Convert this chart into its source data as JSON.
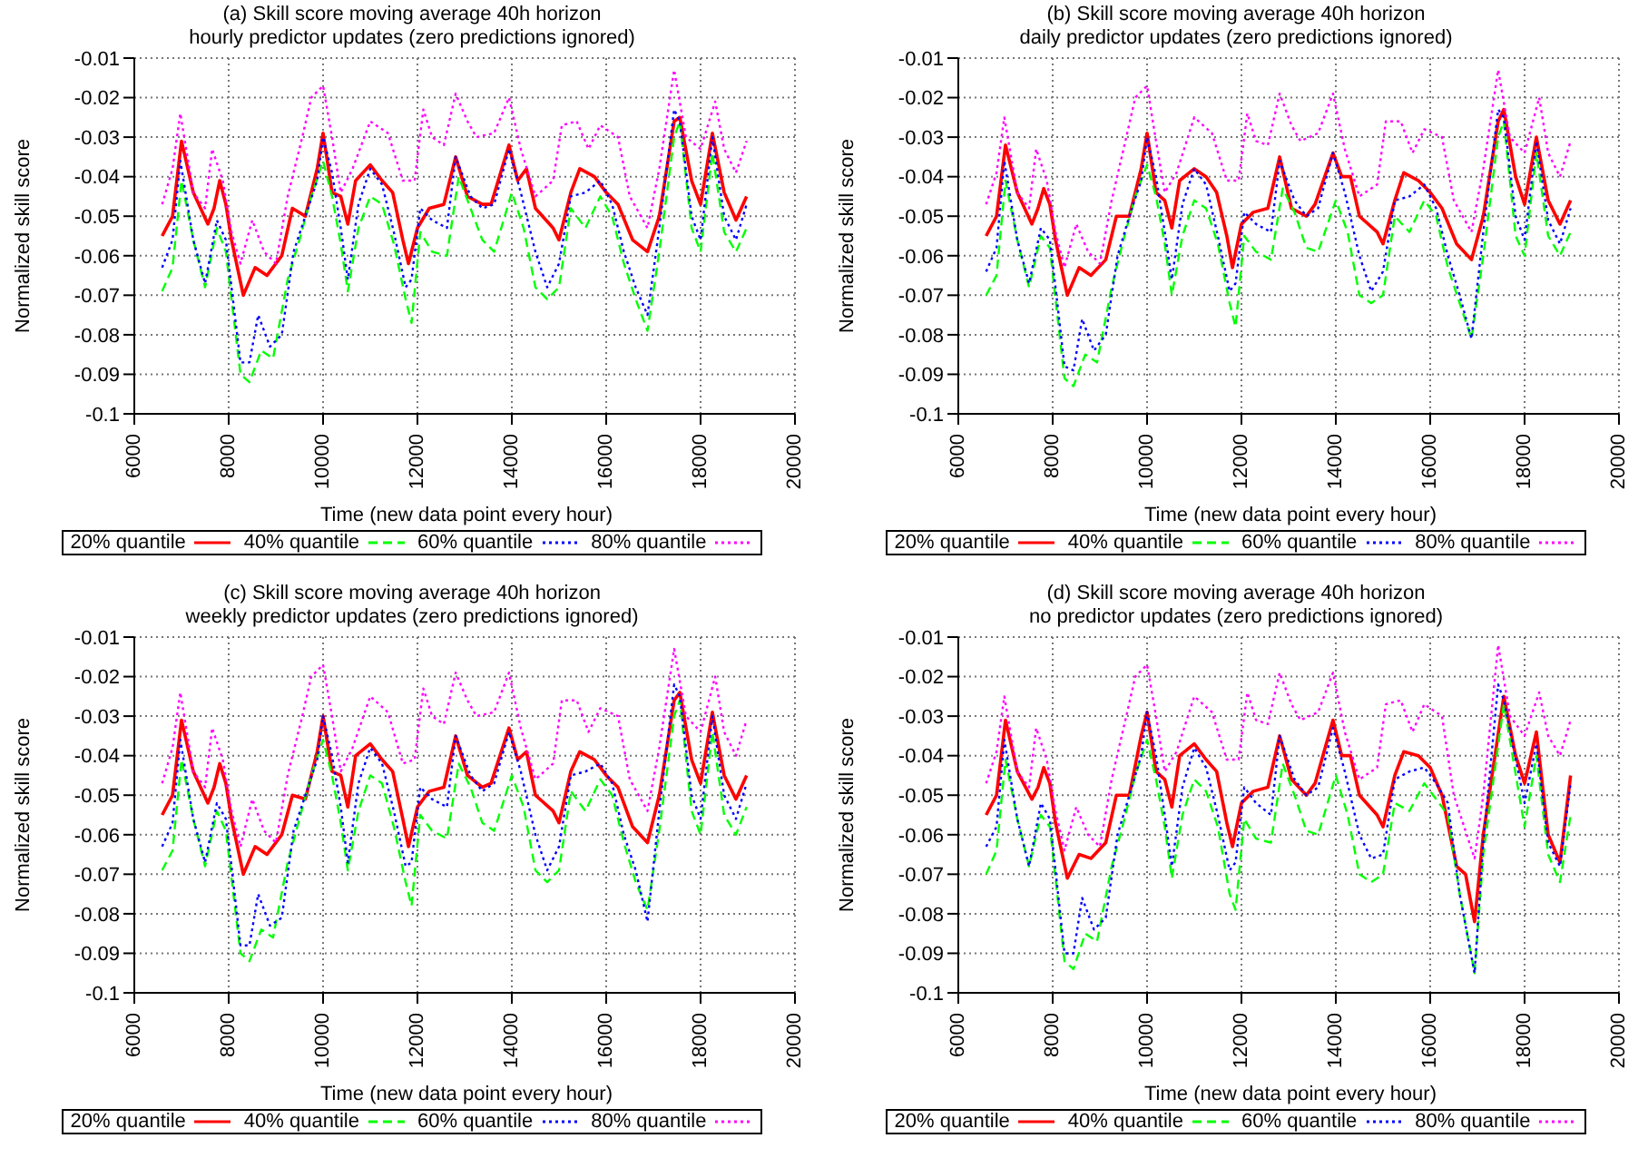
{
  "chart_data": [
    {
      "type": "line",
      "title": "(a) Skill score moving average 40h horizon",
      "subtitle": "hourly predictor updates (zero predictions ignored)",
      "xlabel": "Time (new data point every hour)",
      "ylabel": "Normalized skill score",
      "xlim": [
        6000,
        20000
      ],
      "xticks": [
        6000,
        8000,
        10000,
        12000,
        14000,
        16000,
        18000,
        20000
      ],
      "ylim": [
        -0.1,
        -0.01
      ],
      "yticks": [
        -0.1,
        -0.09,
        -0.08,
        -0.07,
        -0.06,
        -0.05,
        -0.04,
        -0.03,
        -0.02,
        -0.01
      ],
      "grid": true,
      "legend": "bottom",
      "series": [
        {
          "name": "20% quantile",
          "color": "#ff0000",
          "line_style": "solid",
          "x": [
            6590,
            6810,
            7000,
            7250,
            7560,
            7690,
            7810,
            7940,
            8060,
            8310,
            8560,
            8810,
            9125,
            9350,
            9625,
            9875,
            10000,
            10190,
            10375,
            10525,
            10690,
            11000,
            11250,
            11475,
            11690,
            11810,
            12000,
            12250,
            12560,
            12810,
            13060,
            13375,
            13560,
            13940,
            14125,
            14310,
            14500,
            14875,
            15000,
            15250,
            15440,
            15750,
            16000,
            16250,
            16560,
            16875,
            17125,
            17440,
            17560,
            17810,
            18000,
            18250,
            18500,
            18750,
            18975
          ],
          "values": [
            -0.055,
            -0.05,
            -0.031,
            -0.044,
            -0.052,
            -0.048,
            -0.041,
            -0.047,
            -0.056,
            -0.07,
            -0.063,
            -0.065,
            -0.06,
            -0.048,
            -0.05,
            -0.038,
            -0.029,
            -0.044,
            -0.045,
            -0.052,
            -0.041,
            -0.037,
            -0.041,
            -0.044,
            -0.056,
            -0.062,
            -0.053,
            -0.048,
            -0.047,
            -0.035,
            -0.045,
            -0.047,
            -0.047,
            -0.032,
            -0.041,
            -0.038,
            -0.048,
            -0.053,
            -0.056,
            -0.044,
            -0.038,
            -0.04,
            -0.044,
            -0.047,
            -0.056,
            -0.059,
            -0.05,
            -0.026,
            -0.025,
            -0.041,
            -0.047,
            -0.029,
            -0.044,
            -0.051,
            -0.045
          ]
        },
        {
          "name": "40% quantile",
          "color": "#00ff00",
          "line_style": "dashed",
          "x": [
            6590,
            6810,
            7000,
            7250,
            7500,
            7750,
            7940,
            8060,
            8250,
            8440,
            8690,
            8940,
            9250,
            9500,
            9750,
            10000,
            10190,
            10375,
            10525,
            10750,
            11000,
            11250,
            11500,
            11750,
            11875,
            12060,
            12310,
            12625,
            12875,
            13125,
            13375,
            13625,
            14000,
            14250,
            14500,
            14750,
            15000,
            15250,
            15560,
            15875,
            16125,
            16375,
            16625,
            16875,
            17125,
            17440,
            17560,
            17810,
            18000,
            18250,
            18500,
            18750,
            18975
          ],
          "values": [
            -0.069,
            -0.063,
            -0.041,
            -0.056,
            -0.068,
            -0.053,
            -0.059,
            -0.071,
            -0.09,
            -0.092,
            -0.084,
            -0.086,
            -0.066,
            -0.056,
            -0.045,
            -0.036,
            -0.045,
            -0.057,
            -0.069,
            -0.053,
            -0.045,
            -0.047,
            -0.057,
            -0.071,
            -0.077,
            -0.054,
            -0.059,
            -0.06,
            -0.04,
            -0.048,
            -0.056,
            -0.059,
            -0.044,
            -0.053,
            -0.068,
            -0.071,
            -0.068,
            -0.048,
            -0.053,
            -0.045,
            -0.05,
            -0.062,
            -0.071,
            -0.079,
            -0.059,
            -0.03,
            -0.026,
            -0.053,
            -0.059,
            -0.034,
            -0.054,
            -0.059,
            -0.053
          ]
        },
        {
          "name": "60% quantile",
          "color": "#0000ff",
          "line_style": "dotted",
          "x": [
            6590,
            6810,
            6975,
            7250,
            7500,
            7750,
            7940,
            8060,
            8250,
            8440,
            8625,
            8875,
            9125,
            9375,
            9625,
            9875,
            10000,
            10190,
            10375,
            10525,
            10750,
            11000,
            11250,
            11500,
            11750,
            11875,
            12060,
            12310,
            12625,
            12810,
            13125,
            13375,
            13625,
            13940,
            14190,
            14500,
            14750,
            15000,
            15250,
            15560,
            15875,
            16125,
            16375,
            16625,
            16875,
            17125,
            17440,
            17560,
            17810,
            18000,
            18250,
            18500,
            18750,
            18975
          ],
          "values": [
            -0.063,
            -0.056,
            -0.036,
            -0.056,
            -0.067,
            -0.051,
            -0.056,
            -0.068,
            -0.087,
            -0.087,
            -0.075,
            -0.083,
            -0.08,
            -0.059,
            -0.05,
            -0.041,
            -0.03,
            -0.039,
            -0.053,
            -0.066,
            -0.047,
            -0.038,
            -0.042,
            -0.054,
            -0.068,
            -0.066,
            -0.048,
            -0.051,
            -0.053,
            -0.035,
            -0.045,
            -0.048,
            -0.047,
            -0.033,
            -0.044,
            -0.059,
            -0.068,
            -0.062,
            -0.045,
            -0.044,
            -0.041,
            -0.047,
            -0.059,
            -0.068,
            -0.075,
            -0.053,
            -0.023,
            -0.026,
            -0.05,
            -0.056,
            -0.03,
            -0.05,
            -0.056,
            -0.047
          ]
        },
        {
          "name": "80% quantile",
          "color": "#ff00ff",
          "line_style": "dotted",
          "x": [
            6590,
            6810,
            6975,
            7250,
            7500,
            7650,
            7875,
            8060,
            8250,
            8500,
            8750,
            9000,
            9250,
            9560,
            9750,
            10000,
            10190,
            10375,
            10625,
            11000,
            11375,
            11690,
            11940,
            12125,
            12310,
            12560,
            12810,
            13060,
            13250,
            13625,
            13940,
            14190,
            14500,
            14875,
            15060,
            15375,
            15625,
            15875,
            16250,
            16500,
            16875,
            17125,
            17440,
            17690,
            18000,
            18310,
            18500,
            18750,
            18975
          ],
          "values": [
            -0.047,
            -0.038,
            -0.024,
            -0.044,
            -0.048,
            -0.033,
            -0.041,
            -0.054,
            -0.062,
            -0.051,
            -0.059,
            -0.062,
            -0.045,
            -0.03,
            -0.02,
            -0.017,
            -0.03,
            -0.044,
            -0.038,
            -0.026,
            -0.029,
            -0.041,
            -0.041,
            -0.023,
            -0.03,
            -0.032,
            -0.019,
            -0.026,
            -0.03,
            -0.029,
            -0.02,
            -0.033,
            -0.045,
            -0.041,
            -0.027,
            -0.026,
            -0.033,
            -0.027,
            -0.03,
            -0.045,
            -0.053,
            -0.038,
            -0.013,
            -0.03,
            -0.033,
            -0.021,
            -0.033,
            -0.039,
            -0.031
          ]
        }
      ]
    },
    {
      "type": "line",
      "title": "(b) Skill score moving average 40h horizon",
      "subtitle": "daily predictor updates (zero predictions ignored)",
      "xlabel": "Time (new data point every hour)",
      "ylabel": "Normalized skill score",
      "xlim": [
        6000,
        20000
      ],
      "xticks": [
        6000,
        8000,
        10000,
        12000,
        14000,
        16000,
        18000,
        20000
      ],
      "ylim": [
        -0.1,
        -0.01
      ],
      "yticks": [
        -0.1,
        -0.09,
        -0.08,
        -0.07,
        -0.06,
        -0.05,
        -0.04,
        -0.03,
        -0.02,
        -0.01
      ],
      "grid": true,
      "legend": "bottom",
      "series": [
        {
          "name": "20% quantile",
          "color": "#ff0000",
          "line_style": "solid",
          "x": [
            6590,
            6810,
            7000,
            7250,
            7560,
            7690,
            7810,
            7940,
            8060,
            8310,
            8560,
            8810,
            9125,
            9350,
            9625,
            9875,
            10000,
            10190,
            10375,
            10525,
            10690,
            11000,
            11250,
            11475,
            11690,
            11810,
            12000,
            12250,
            12560,
            12810,
            13060,
            13375,
            13560,
            13940,
            14125,
            14310,
            14500,
            14875,
            15000,
            15250,
            15440,
            15750,
            16000,
            16250,
            16560,
            16875,
            17125,
            17440,
            17560,
            17810,
            18000,
            18250,
            18500,
            18750,
            18975
          ],
          "values": [
            -0.055,
            -0.05,
            -0.032,
            -0.044,
            -0.052,
            -0.048,
            -0.043,
            -0.047,
            -0.056,
            -0.07,
            -0.063,
            -0.065,
            -0.061,
            -0.05,
            -0.05,
            -0.038,
            -0.029,
            -0.044,
            -0.046,
            -0.053,
            -0.041,
            -0.038,
            -0.04,
            -0.044,
            -0.055,
            -0.063,
            -0.052,
            -0.049,
            -0.048,
            -0.035,
            -0.048,
            -0.05,
            -0.047,
            -0.034,
            -0.04,
            -0.04,
            -0.05,
            -0.054,
            -0.057,
            -0.046,
            -0.039,
            -0.041,
            -0.044,
            -0.048,
            -0.057,
            -0.061,
            -0.05,
            -0.026,
            -0.023,
            -0.04,
            -0.047,
            -0.03,
            -0.046,
            -0.052,
            -0.046
          ]
        },
        {
          "name": "40% quantile",
          "color": "#00ff00",
          "line_style": "dashed",
          "x": [
            6590,
            6810,
            7000,
            7250,
            7500,
            7750,
            7940,
            8060,
            8250,
            8440,
            8690,
            8940,
            9250,
            9500,
            9750,
            10000,
            10190,
            10375,
            10525,
            10750,
            11000,
            11250,
            11500,
            11750,
            11875,
            12060,
            12310,
            12625,
            12875,
            13125,
            13375,
            13625,
            14000,
            14250,
            14500,
            14750,
            15000,
            15250,
            15560,
            15875,
            16125,
            16375,
            16625,
            16875,
            17125,
            17440,
            17560,
            17810,
            18000,
            18250,
            18500,
            18750,
            18975
          ],
          "values": [
            -0.07,
            -0.065,
            -0.041,
            -0.056,
            -0.068,
            -0.055,
            -0.058,
            -0.071,
            -0.091,
            -0.093,
            -0.085,
            -0.087,
            -0.068,
            -0.056,
            -0.045,
            -0.037,
            -0.045,
            -0.057,
            -0.07,
            -0.055,
            -0.046,
            -0.048,
            -0.057,
            -0.072,
            -0.078,
            -0.055,
            -0.059,
            -0.061,
            -0.043,
            -0.049,
            -0.058,
            -0.059,
            -0.046,
            -0.054,
            -0.07,
            -0.072,
            -0.07,
            -0.05,
            -0.054,
            -0.046,
            -0.05,
            -0.063,
            -0.072,
            -0.081,
            -0.06,
            -0.03,
            -0.026,
            -0.055,
            -0.06,
            -0.034,
            -0.055,
            -0.06,
            -0.054
          ]
        },
        {
          "name": "60% quantile",
          "color": "#0000ff",
          "line_style": "dotted",
          "x": [
            6590,
            6810,
            6975,
            7250,
            7500,
            7750,
            7940,
            8060,
            8250,
            8440,
            8625,
            8875,
            9125,
            9375,
            9625,
            9875,
            10000,
            10190,
            10375,
            10525,
            10750,
            11000,
            11250,
            11500,
            11750,
            11875,
            12060,
            12310,
            12625,
            12810,
            13125,
            13375,
            13625,
            13940,
            14190,
            14500,
            14750,
            15000,
            15250,
            15560,
            15875,
            16125,
            16375,
            16625,
            16875,
            17125,
            17440,
            17560,
            17810,
            18000,
            18250,
            18500,
            18750,
            18975
          ],
          "values": [
            -0.064,
            -0.058,
            -0.036,
            -0.056,
            -0.067,
            -0.053,
            -0.056,
            -0.068,
            -0.088,
            -0.089,
            -0.076,
            -0.084,
            -0.08,
            -0.06,
            -0.05,
            -0.041,
            -0.03,
            -0.04,
            -0.054,
            -0.066,
            -0.047,
            -0.038,
            -0.042,
            -0.055,
            -0.069,
            -0.067,
            -0.049,
            -0.052,
            -0.054,
            -0.036,
            -0.046,
            -0.05,
            -0.048,
            -0.034,
            -0.044,
            -0.06,
            -0.069,
            -0.064,
            -0.046,
            -0.045,
            -0.042,
            -0.048,
            -0.06,
            -0.07,
            -0.081,
            -0.054,
            -0.023,
            -0.025,
            -0.05,
            -0.056,
            -0.031,
            -0.051,
            -0.057,
            -0.048
          ]
        },
        {
          "name": "80% quantile",
          "color": "#ff00ff",
          "line_style": "dotted",
          "x": [
            6590,
            6810,
            6975,
            7250,
            7500,
            7650,
            7875,
            8060,
            8250,
            8500,
            8750,
            9000,
            9250,
            9560,
            9750,
            10000,
            10190,
            10375,
            10625,
            11000,
            11375,
            11690,
            11940,
            12125,
            12310,
            12560,
            12810,
            13060,
            13250,
            13625,
            13940,
            14190,
            14500,
            14875,
            15060,
            15375,
            15625,
            15875,
            16250,
            16500,
            16875,
            17125,
            17440,
            17690,
            18000,
            18310,
            18500,
            18750,
            18975
          ],
          "values": [
            -0.047,
            -0.039,
            -0.025,
            -0.044,
            -0.048,
            -0.033,
            -0.041,
            -0.054,
            -0.063,
            -0.052,
            -0.059,
            -0.062,
            -0.046,
            -0.03,
            -0.02,
            -0.017,
            -0.031,
            -0.044,
            -0.039,
            -0.025,
            -0.029,
            -0.041,
            -0.041,
            -0.024,
            -0.031,
            -0.032,
            -0.019,
            -0.027,
            -0.031,
            -0.029,
            -0.019,
            -0.033,
            -0.045,
            -0.042,
            -0.026,
            -0.026,
            -0.034,
            -0.028,
            -0.03,
            -0.046,
            -0.054,
            -0.038,
            -0.013,
            -0.03,
            -0.034,
            -0.02,
            -0.034,
            -0.04,
            -0.031
          ]
        }
      ]
    },
    {
      "type": "line",
      "title": "(c) Skill score moving average 40h horizon",
      "subtitle": "weekly predictor updates (zero predictions ignored)",
      "xlabel": "Time (new data point every hour)",
      "ylabel": "Normalized skill score",
      "xlim": [
        6000,
        20000
      ],
      "xticks": [
        6000,
        8000,
        10000,
        12000,
        14000,
        16000,
        18000,
        20000
      ],
      "ylim": [
        -0.1,
        -0.01
      ],
      "yticks": [
        -0.1,
        -0.09,
        -0.08,
        -0.07,
        -0.06,
        -0.05,
        -0.04,
        -0.03,
        -0.02,
        -0.01
      ],
      "grid": true,
      "legend": "bottom",
      "series": [
        {
          "name": "20% quantile",
          "color": "#ff0000",
          "line_style": "solid",
          "x": [
            6590,
            6810,
            7000,
            7250,
            7560,
            7690,
            7810,
            7940,
            8060,
            8310,
            8560,
            8810,
            9125,
            9350,
            9625,
            9875,
            10000,
            10190,
            10375,
            10525,
            10690,
            11000,
            11250,
            11475,
            11690,
            11810,
            12000,
            12250,
            12560,
            12810,
            13060,
            13375,
            13560,
            13940,
            14125,
            14310,
            14500,
            14875,
            15000,
            15250,
            15440,
            15750,
            16000,
            16250,
            16560,
            16875,
            17125,
            17440,
            17560,
            17810,
            18000,
            18250,
            18500,
            18750,
            18975
          ],
          "values": [
            -0.055,
            -0.05,
            -0.031,
            -0.044,
            -0.052,
            -0.048,
            -0.042,
            -0.047,
            -0.056,
            -0.07,
            -0.063,
            -0.065,
            -0.06,
            -0.05,
            -0.051,
            -0.039,
            -0.03,
            -0.044,
            -0.045,
            -0.053,
            -0.04,
            -0.037,
            -0.041,
            -0.044,
            -0.056,
            -0.063,
            -0.053,
            -0.049,
            -0.048,
            -0.035,
            -0.045,
            -0.048,
            -0.047,
            -0.033,
            -0.041,
            -0.039,
            -0.05,
            -0.054,
            -0.057,
            -0.044,
            -0.039,
            -0.041,
            -0.045,
            -0.048,
            -0.058,
            -0.062,
            -0.05,
            -0.026,
            -0.024,
            -0.041,
            -0.047,
            -0.029,
            -0.045,
            -0.051,
            -0.045
          ]
        },
        {
          "name": "40% quantile",
          "color": "#00ff00",
          "line_style": "dashed",
          "x": [
            6590,
            6810,
            7000,
            7250,
            7500,
            7750,
            7940,
            8060,
            8250,
            8440,
            8690,
            8940,
            9250,
            9500,
            9750,
            10000,
            10190,
            10375,
            10525,
            10750,
            11000,
            11250,
            11500,
            11750,
            11875,
            12060,
            12310,
            12625,
            12875,
            13125,
            13375,
            13625,
            14000,
            14250,
            14500,
            14750,
            15000,
            15250,
            15560,
            15875,
            16125,
            16375,
            16625,
            16875,
            17125,
            17440,
            17560,
            17810,
            18000,
            18250,
            18500,
            18750,
            18975
          ],
          "values": [
            -0.069,
            -0.064,
            -0.041,
            -0.056,
            -0.068,
            -0.054,
            -0.059,
            -0.071,
            -0.09,
            -0.092,
            -0.084,
            -0.086,
            -0.067,
            -0.056,
            -0.045,
            -0.036,
            -0.045,
            -0.057,
            -0.069,
            -0.054,
            -0.045,
            -0.047,
            -0.058,
            -0.072,
            -0.078,
            -0.055,
            -0.059,
            -0.061,
            -0.042,
            -0.048,
            -0.057,
            -0.059,
            -0.045,
            -0.053,
            -0.069,
            -0.072,
            -0.069,
            -0.049,
            -0.054,
            -0.046,
            -0.05,
            -0.062,
            -0.072,
            -0.079,
            -0.059,
            -0.03,
            -0.026,
            -0.054,
            -0.06,
            -0.034,
            -0.055,
            -0.06,
            -0.053
          ]
        },
        {
          "name": "60% quantile",
          "color": "#0000ff",
          "line_style": "dotted",
          "x": [
            6590,
            6810,
            6975,
            7250,
            7500,
            7750,
            7940,
            8060,
            8250,
            8440,
            8625,
            8875,
            9125,
            9375,
            9625,
            9875,
            10000,
            10190,
            10375,
            10525,
            10750,
            11000,
            11250,
            11500,
            11750,
            11875,
            12060,
            12310,
            12625,
            12810,
            13125,
            13375,
            13625,
            13940,
            14190,
            14500,
            14750,
            15000,
            15250,
            15560,
            15875,
            16125,
            16375,
            16625,
            16875,
            17125,
            17440,
            17560,
            17810,
            18000,
            18250,
            18500,
            18750,
            18975
          ],
          "values": [
            -0.063,
            -0.057,
            -0.036,
            -0.056,
            -0.067,
            -0.052,
            -0.056,
            -0.068,
            -0.088,
            -0.088,
            -0.075,
            -0.083,
            -0.081,
            -0.059,
            -0.05,
            -0.041,
            -0.03,
            -0.04,
            -0.053,
            -0.067,
            -0.047,
            -0.038,
            -0.042,
            -0.054,
            -0.068,
            -0.067,
            -0.048,
            -0.051,
            -0.053,
            -0.035,
            -0.045,
            -0.049,
            -0.047,
            -0.034,
            -0.044,
            -0.06,
            -0.069,
            -0.063,
            -0.045,
            -0.044,
            -0.042,
            -0.047,
            -0.06,
            -0.069,
            -0.082,
            -0.054,
            -0.022,
            -0.025,
            -0.05,
            -0.056,
            -0.03,
            -0.05,
            -0.056,
            -0.047
          ]
        },
        {
          "name": "80% quantile",
          "color": "#ff00ff",
          "line_style": "dotted",
          "x": [
            6590,
            6810,
            6975,
            7250,
            7500,
            7650,
            7875,
            8060,
            8250,
            8500,
            8750,
            9000,
            9250,
            9560,
            9750,
            10000,
            10190,
            10375,
            10625,
            11000,
            11375,
            11690,
            11940,
            12125,
            12310,
            12560,
            12810,
            13060,
            13250,
            13625,
            13940,
            14190,
            14500,
            14875,
            15060,
            15375,
            15625,
            15875,
            16250,
            16500,
            16875,
            17125,
            17440,
            17690,
            18000,
            18310,
            18500,
            18750,
            18975
          ],
          "values": [
            -0.047,
            -0.038,
            -0.024,
            -0.044,
            -0.048,
            -0.033,
            -0.041,
            -0.054,
            -0.063,
            -0.051,
            -0.059,
            -0.062,
            -0.045,
            -0.03,
            -0.02,
            -0.017,
            -0.03,
            -0.044,
            -0.038,
            -0.025,
            -0.029,
            -0.042,
            -0.041,
            -0.023,
            -0.03,
            -0.032,
            -0.019,
            -0.026,
            -0.03,
            -0.029,
            -0.019,
            -0.033,
            -0.046,
            -0.042,
            -0.026,
            -0.026,
            -0.034,
            -0.028,
            -0.03,
            -0.046,
            -0.054,
            -0.038,
            -0.013,
            -0.03,
            -0.034,
            -0.02,
            -0.034,
            -0.04,
            -0.031
          ]
        }
      ]
    },
    {
      "type": "line",
      "title": "(d) Skill score moving average 40h horizon",
      "subtitle": "no predictor updates (zero predictions ignored)",
      "xlabel": "Time (new data point every hour)",
      "ylabel": "Normalized skill score",
      "xlim": [
        6000,
        20000
      ],
      "xticks": [
        6000,
        8000,
        10000,
        12000,
        14000,
        16000,
        18000,
        20000
      ],
      "ylim": [
        -0.1,
        -0.01
      ],
      "yticks": [
        -0.1,
        -0.09,
        -0.08,
        -0.07,
        -0.06,
        -0.05,
        -0.04,
        -0.03,
        -0.02,
        -0.01
      ],
      "grid": true,
      "legend": "bottom",
      "series": [
        {
          "name": "20% quantile",
          "color": "#ff0000",
          "line_style": "solid",
          "x": [
            6590,
            6810,
            7000,
            7250,
            7560,
            7690,
            7810,
            7940,
            8060,
            8310,
            8560,
            8810,
            9125,
            9350,
            9625,
            9875,
            10000,
            10190,
            10375,
            10525,
            10690,
            11000,
            11250,
            11475,
            11690,
            11810,
            12000,
            12250,
            12560,
            12810,
            13060,
            13375,
            13560,
            13940,
            14125,
            14310,
            14500,
            14875,
            15000,
            15250,
            15440,
            15750,
            16000,
            16250,
            16560,
            16750,
            16940,
            17125,
            17310,
            17560,
            17810,
            18000,
            18250,
            18500,
            18750,
            18975
          ],
          "values": [
            -0.055,
            -0.05,
            -0.031,
            -0.044,
            -0.051,
            -0.048,
            -0.043,
            -0.047,
            -0.057,
            -0.071,
            -0.065,
            -0.066,
            -0.062,
            -0.05,
            -0.05,
            -0.035,
            -0.029,
            -0.044,
            -0.046,
            -0.053,
            -0.04,
            -0.037,
            -0.041,
            -0.044,
            -0.057,
            -0.063,
            -0.052,
            -0.049,
            -0.048,
            -0.035,
            -0.046,
            -0.05,
            -0.047,
            -0.031,
            -0.04,
            -0.04,
            -0.05,
            -0.055,
            -0.058,
            -0.045,
            -0.039,
            -0.04,
            -0.043,
            -0.05,
            -0.068,
            -0.07,
            -0.082,
            -0.06,
            -0.045,
            -0.025,
            -0.04,
            -0.047,
            -0.034,
            -0.06,
            -0.067,
            -0.045
          ]
        },
        {
          "name": "40% quantile",
          "color": "#00ff00",
          "line_style": "dashed",
          "x": [
            6590,
            6810,
            7000,
            7250,
            7500,
            7750,
            7940,
            8060,
            8250,
            8440,
            8690,
            8940,
            9250,
            9500,
            9750,
            10000,
            10190,
            10375,
            10525,
            10750,
            11000,
            11250,
            11500,
            11750,
            11875,
            12060,
            12310,
            12625,
            12875,
            13125,
            13375,
            13625,
            14000,
            14250,
            14500,
            14750,
            15000,
            15250,
            15560,
            15875,
            16125,
            16375,
            16625,
            16940,
            17125,
            17560,
            18000,
            18250,
            18500,
            18750,
            18975
          ],
          "values": [
            -0.07,
            -0.064,
            -0.041,
            -0.056,
            -0.068,
            -0.055,
            -0.058,
            -0.071,
            -0.092,
            -0.094,
            -0.085,
            -0.087,
            -0.068,
            -0.057,
            -0.045,
            -0.036,
            -0.046,
            -0.058,
            -0.071,
            -0.055,
            -0.046,
            -0.049,
            -0.058,
            -0.075,
            -0.079,
            -0.056,
            -0.061,
            -0.062,
            -0.042,
            -0.05,
            -0.059,
            -0.06,
            -0.045,
            -0.055,
            -0.07,
            -0.072,
            -0.07,
            -0.052,
            -0.054,
            -0.047,
            -0.051,
            -0.055,
            -0.075,
            -0.095,
            -0.065,
            -0.027,
            -0.058,
            -0.04,
            -0.065,
            -0.072,
            -0.055
          ]
        },
        {
          "name": "60% quantile",
          "color": "#0000ff",
          "line_style": "dotted",
          "x": [
            6590,
            6810,
            6975,
            7250,
            7500,
            7750,
            7940,
            8060,
            8250,
            8440,
            8625,
            8875,
            9125,
            9375,
            9625,
            9875,
            10000,
            10190,
            10375,
            10525,
            10750,
            11000,
            11250,
            11500,
            11750,
            11875,
            12060,
            12310,
            12625,
            12810,
            13125,
            13375,
            13625,
            13940,
            14190,
            14500,
            14750,
            15000,
            15250,
            15560,
            15875,
            16125,
            16375,
            16625,
            16940,
            17125,
            17440,
            17560,
            18000,
            18250,
            18500,
            18750,
            18975
          ],
          "values": [
            -0.063,
            -0.058,
            -0.036,
            -0.056,
            -0.068,
            -0.052,
            -0.056,
            -0.069,
            -0.09,
            -0.09,
            -0.076,
            -0.084,
            -0.081,
            -0.06,
            -0.05,
            -0.04,
            -0.029,
            -0.04,
            -0.055,
            -0.068,
            -0.048,
            -0.038,
            -0.043,
            -0.055,
            -0.069,
            -0.067,
            -0.048,
            -0.052,
            -0.055,
            -0.035,
            -0.046,
            -0.05,
            -0.048,
            -0.033,
            -0.044,
            -0.06,
            -0.066,
            -0.065,
            -0.046,
            -0.044,
            -0.043,
            -0.047,
            -0.052,
            -0.075,
            -0.095,
            -0.062,
            -0.022,
            -0.026,
            -0.052,
            -0.037,
            -0.062,
            -0.068,
            -0.047
          ]
        },
        {
          "name": "80% quantile",
          "color": "#ff00ff",
          "line_style": "dotted",
          "x": [
            6590,
            6810,
            6975,
            7250,
            7500,
            7650,
            7875,
            8060,
            8250,
            8500,
            8750,
            9000,
            9250,
            9560,
            9750,
            10000,
            10190,
            10375,
            10625,
            11000,
            11375,
            11690,
            11940,
            12125,
            12310,
            12560,
            12810,
            13060,
            13250,
            13625,
            13940,
            14190,
            14500,
            14875,
            15060,
            15375,
            15625,
            15875,
            16250,
            16500,
            16940,
            17125,
            17440,
            17690,
            18000,
            18310,
            18500,
            18750,
            18975
          ],
          "values": [
            -0.047,
            -0.039,
            -0.025,
            -0.044,
            -0.048,
            -0.033,
            -0.041,
            -0.054,
            -0.064,
            -0.053,
            -0.06,
            -0.063,
            -0.046,
            -0.03,
            -0.02,
            -0.017,
            -0.03,
            -0.044,
            -0.039,
            -0.025,
            -0.029,
            -0.041,
            -0.041,
            -0.024,
            -0.031,
            -0.032,
            -0.019,
            -0.027,
            -0.031,
            -0.029,
            -0.019,
            -0.034,
            -0.046,
            -0.043,
            -0.027,
            -0.026,
            -0.034,
            -0.027,
            -0.03,
            -0.05,
            -0.066,
            -0.05,
            -0.012,
            -0.03,
            -0.035,
            -0.024,
            -0.035,
            -0.04,
            -0.031
          ]
        }
      ]
    }
  ]
}
